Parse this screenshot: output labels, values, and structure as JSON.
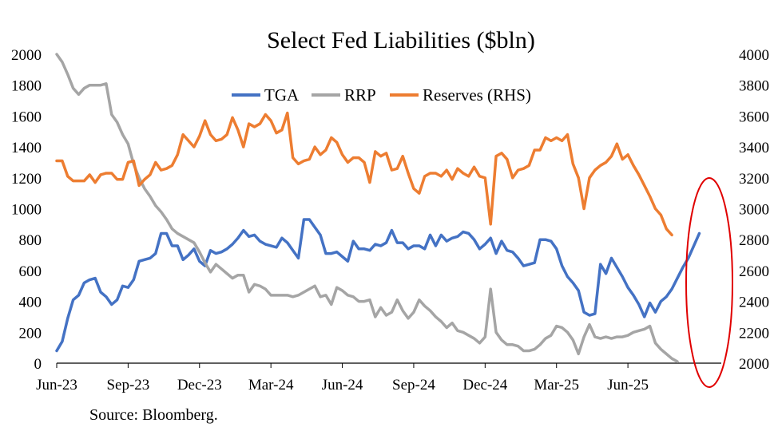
{
  "chart_data": {
    "type": "line",
    "title": "Select Fed Liabilities ($bln)",
    "source": "Source: Bloomberg.",
    "x_ticks": [
      "Jun-23",
      "Sep-23",
      "Dec-23",
      "Mar-24",
      "Jun-24",
      "Sep-24",
      "Dec-24",
      "Mar-25",
      "Jun-25"
    ],
    "left_axis": {
      "ylim": [
        0,
        2000
      ],
      "ticks": [
        "0",
        "200",
        "400",
        "600",
        "800",
        "1000",
        "1200",
        "1400",
        "1600",
        "1800",
        "2000"
      ]
    },
    "right_axis": {
      "ylim": [
        2000,
        4000
      ],
      "ticks": [
        "2000",
        "2200",
        "2400",
        "2600",
        "2800",
        "3000",
        "3200",
        "3400",
        "3600",
        "3800",
        "4000"
      ]
    },
    "colors": {
      "TGA": "#4472C4",
      "RRP": "#A5A5A5",
      "Reserves": "#ED7D31",
      "highlight": "#E00000"
    },
    "series": [
      {
        "name": "TGA",
        "axis": "left",
        "color": "#4472C4",
        "projected_from": 118,
        "values": [
          80,
          140,
          290,
          410,
          440,
          520,
          540,
          550,
          460,
          430,
          380,
          410,
          500,
          490,
          540,
          660,
          670,
          680,
          710,
          840,
          840,
          760,
          760,
          670,
          700,
          740,
          660,
          630,
          730,
          710,
          720,
          740,
          770,
          810,
          860,
          820,
          830,
          790,
          770,
          760,
          750,
          810,
          780,
          730,
          680,
          930,
          930,
          880,
          830,
          710,
          710,
          720,
          690,
          660,
          790,
          740,
          740,
          730,
          770,
          760,
          780,
          860,
          780,
          780,
          740,
          760,
          760,
          740,
          830,
          760,
          830,
          790,
          810,
          820,
          850,
          840,
          800,
          740,
          770,
          810,
          710,
          790,
          730,
          720,
          680,
          630,
          640,
          650,
          800,
          800,
          790,
          740,
          630,
          560,
          520,
          470,
          330,
          310,
          320,
          640,
          580,
          680,
          620,
          560,
          490,
          440,
          380,
          300,
          390,
          330,
          400,
          430,
          480,
          550,
          620,
          680,
          760,
          840
        ]
      },
      {
        "name": "RRP",
        "axis": "left",
        "color": "#A5A5A5",
        "projected_from": 115,
        "values": [
          2000,
          1950,
          1870,
          1780,
          1740,
          1780,
          1800,
          1800,
          1800,
          1810,
          1610,
          1560,
          1480,
          1420,
          1290,
          1200,
          1130,
          1080,
          1020,
          980,
          930,
          870,
          840,
          820,
          800,
          780,
          720,
          650,
          590,
          640,
          610,
          580,
          550,
          570,
          570,
          460,
          510,
          500,
          480,
          440,
          440,
          440,
          440,
          430,
          440,
          460,
          480,
          500,
          430,
          440,
          380,
          490,
          470,
          440,
          430,
          400,
          400,
          410,
          300,
          360,
          310,
          330,
          410,
          340,
          290,
          330,
          410,
          370,
          340,
          300,
          270,
          230,
          260,
          210,
          200,
          180,
          160,
          130,
          170,
          480,
          200,
          150,
          120,
          120,
          110,
          80,
          80,
          90,
          120,
          160,
          180,
          240,
          230,
          200,
          150,
          60,
          170,
          250,
          170,
          160,
          170,
          160,
          170,
          170,
          180,
          200,
          210,
          220,
          240,
          130,
          90,
          60,
          30,
          10
        ]
      },
      {
        "name": "Reserves (RHS)",
        "axis": "right",
        "color": "#ED7D31",
        "projected_from": 117,
        "values": [
          3310,
          3310,
          3210,
          3180,
          3180,
          3180,
          3220,
          3170,
          3220,
          3230,
          3230,
          3190,
          3190,
          3300,
          3310,
          3150,
          3190,
          3220,
          3300,
          3250,
          3260,
          3280,
          3350,
          3480,
          3440,
          3400,
          3470,
          3570,
          3480,
          3440,
          3450,
          3480,
          3590,
          3510,
          3400,
          3550,
          3530,
          3550,
          3610,
          3570,
          3490,
          3510,
          3620,
          3330,
          3290,
          3310,
          3320,
          3400,
          3350,
          3380,
          3460,
          3430,
          3350,
          3300,
          3330,
          3330,
          3300,
          3170,
          3370,
          3340,
          3360,
          3250,
          3260,
          3340,
          3230,
          3130,
          3100,
          3210,
          3230,
          3230,
          3210,
          3250,
          3190,
          3260,
          3230,
          3210,
          3270,
          3210,
          3200,
          2900,
          3340,
          3360,
          3320,
          3200,
          3250,
          3260,
          3280,
          3380,
          3380,
          3460,
          3440,
          3460,
          3440,
          3480,
          3290,
          3200,
          3000,
          3200,
          3250,
          3280,
          3300,
          3340,
          3420,
          3320,
          3350,
          3280,
          3220,
          3150,
          3080,
          3000,
          2960,
          2870,
          2830
        ]
      }
    ],
    "highlight": "red ellipse around latest projected values"
  }
}
